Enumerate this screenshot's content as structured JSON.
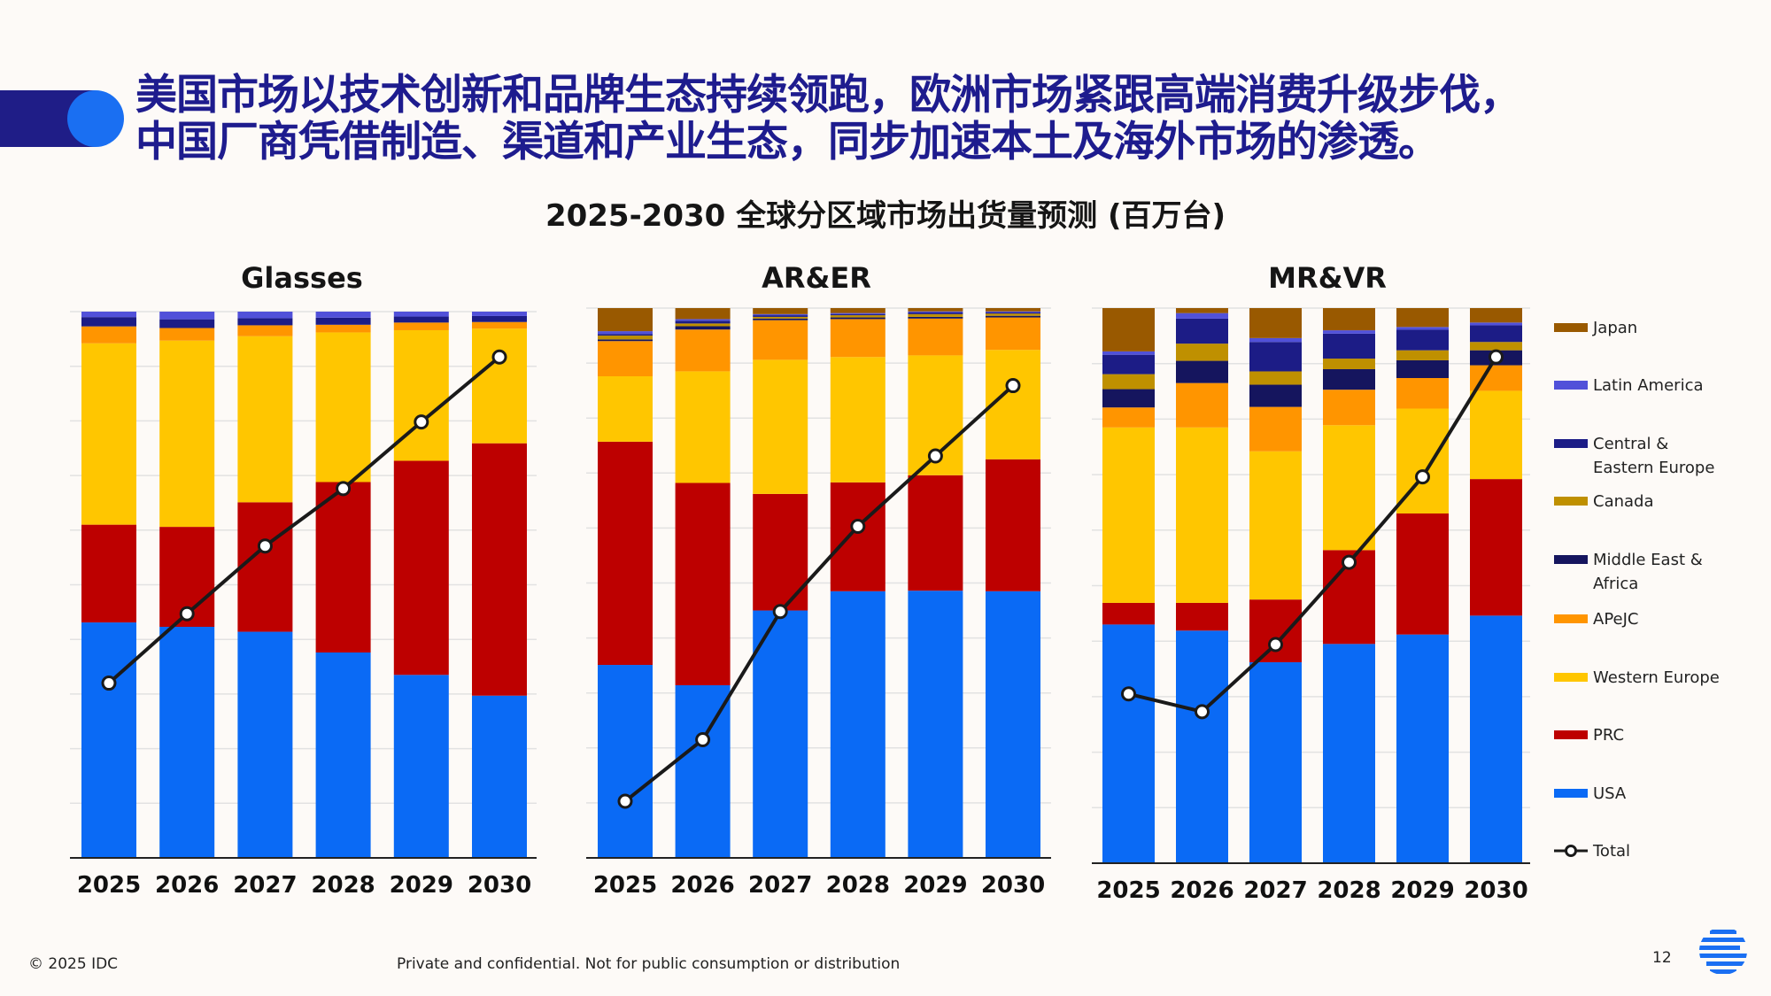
{
  "headline": {
    "line1": "美国市场以技术创新和品牌生态持续领跑，欧洲市场紧跟高端消费升级步伐，",
    "line2": "中国厂商凭借制造、渠道和产业生态，同步加速本土及海外市场的渗透。"
  },
  "subtitle": "2025-2030 全球分区域市场出货量预测 (百万台)",
  "colors": {
    "USA": "#0a6af5",
    "PRC": "#bd0000",
    "Western Europe": "#ffc600",
    "APeJC": "#ff9500",
    "Middle East & Africa": "#15155e",
    "Canada": "#bf9000",
    "Central & Eastern Europe": "#1c1c86",
    "Latin America": "#5151d9",
    "Japan": "#995900",
    "Total": "#1a1a1a",
    "accent": "#1e1c8e"
  },
  "legend": {
    "items": [
      {
        "label": "Japan",
        "key": "Japan"
      },
      {
        "label": "Latin America",
        "key": "Latin America"
      },
      {
        "label": "Central &\nEastern Europe",
        "key": "Central & Eastern Europe"
      },
      {
        "label": "Canada",
        "key": "Canada"
      },
      {
        "label": "Middle East &\nAfrica",
        "key": "Middle East & Africa"
      },
      {
        "label": "APeJC",
        "key": "APeJC"
      },
      {
        "label": "Western Europe",
        "key": "Western Europe"
      },
      {
        "label": "PRC",
        "key": "PRC"
      },
      {
        "label": "USA",
        "key": "USA"
      },
      {
        "label": "Total",
        "key": "Total"
      }
    ],
    "placement": "right"
  },
  "chart_data": [
    {
      "type": "bar",
      "stacked": "100%",
      "title": "Glasses",
      "categories": [
        "2025",
        "2026",
        "2027",
        "2028",
        "2029",
        "2030"
      ],
      "ylim": [
        0,
        100
      ],
      "grid": true,
      "y_ticks_labeled": false,
      "series": [
        {
          "name": "USA",
          "values": [
            43.1,
            42.3,
            41.4,
            37.6,
            33.5,
            29.7
          ]
        },
        {
          "name": "PRC",
          "values": [
            17.9,
            18.3,
            23.7,
            31.2,
            39.2,
            46.2
          ]
        },
        {
          "name": "Western Europe",
          "values": [
            33.2,
            34.1,
            30.4,
            27.4,
            23.9,
            21.0
          ]
        },
        {
          "name": "APeJC",
          "values": [
            3.1,
            2.3,
            2.0,
            1.4,
            1.4,
            1.2
          ]
        },
        {
          "name": "Middle East & Africa",
          "values": [
            0,
            0,
            0,
            0,
            0,
            0
          ]
        },
        {
          "name": "Canada",
          "values": [
            0,
            0,
            0,
            0,
            0,
            0
          ]
        },
        {
          "name": "Central & Eastern Europe",
          "values": [
            1.7,
            1.6,
            1.3,
            1.3,
            1.1,
            1.1
          ]
        },
        {
          "name": "Latin America",
          "values": [
            1.0,
            1.4,
            1.2,
            1.1,
            0.9,
            0.8
          ]
        },
        {
          "name": "Japan",
          "values": [
            0,
            0,
            0,
            0,
            0,
            0
          ]
        }
      ],
      "total_line": {
        "name": "Total",
        "relative_values": [
          32.0,
          44.7,
          57.1,
          67.6,
          79.8,
          91.7
        ]
      }
    },
    {
      "type": "bar",
      "stacked": "100%",
      "title": "AR&ER",
      "categories": [
        "2025",
        "2026",
        "2027",
        "2028",
        "2029",
        "2030"
      ],
      "ylim": [
        0,
        100
      ],
      "grid": true,
      "y_ticks_labeled": false,
      "series": [
        {
          "name": "USA",
          "values": [
            35.1,
            31.4,
            45.0,
            48.5,
            48.6,
            48.5
          ]
        },
        {
          "name": "PRC",
          "values": [
            40.6,
            36.8,
            21.2,
            19.8,
            21.0,
            24.0
          ]
        },
        {
          "name": "Western Europe",
          "values": [
            11.9,
            20.3,
            24.4,
            22.8,
            21.8,
            19.9
          ]
        },
        {
          "name": "APeJC",
          "values": [
            6.4,
            7.6,
            7.2,
            6.9,
            6.7,
            5.9
          ]
        },
        {
          "name": "Middle East & Africa",
          "values": [
            0.3,
            0.6,
            0.3,
            0.3,
            0.3,
            0.3
          ]
        },
        {
          "name": "Canada",
          "values": [
            0.7,
            0.5,
            0.3,
            0.4,
            0.5,
            0.4
          ]
        },
        {
          "name": "Central & Eastern Europe",
          "values": [
            0.3,
            0.5,
            0.3,
            0.2,
            0.3,
            0.2
          ]
        },
        {
          "name": "Latin America",
          "values": [
            0.5,
            0.3,
            0.2,
            0.2,
            0.2,
            0.2
          ]
        },
        {
          "name": "Japan",
          "values": [
            4.2,
            2.0,
            1.1,
            0.9,
            0.6,
            0.6
          ]
        }
      ],
      "total_line": {
        "name": "Total",
        "relative_values": [
          10.3,
          21.5,
          44.8,
          60.3,
          73.1,
          85.9
        ]
      }
    },
    {
      "type": "bar",
      "stacked": "100%",
      "title": "MR&VR",
      "categories": [
        "2025",
        "2026",
        "2027",
        "2028",
        "2029",
        "2030"
      ],
      "ylim": [
        0,
        100
      ],
      "grid": true,
      "y_ticks_labeled": false,
      "series": [
        {
          "name": "USA",
          "values": [
            43.0,
            41.9,
            36.2,
            39.5,
            41.2,
            44.6
          ]
        },
        {
          "name": "PRC",
          "values": [
            3.9,
            5.0,
            11.3,
            16.9,
            21.8,
            24.6
          ]
        },
        {
          "name": "Western Europe",
          "values": [
            31.6,
            31.6,
            26.7,
            22.5,
            18.9,
            15.9
          ]
        },
        {
          "name": "APeJC",
          "values": [
            3.6,
            8.0,
            8.0,
            6.4,
            5.5,
            4.6
          ]
        },
        {
          "name": "Middle East & Africa",
          "values": [
            3.3,
            4.0,
            4.0,
            3.7,
            3.2,
            2.7
          ]
        },
        {
          "name": "Canada",
          "values": [
            2.7,
            3.1,
            2.4,
            1.9,
            1.8,
            1.5
          ]
        },
        {
          "name": "Central & Eastern Europe",
          "values": [
            3.5,
            4.5,
            5.3,
            4.5,
            3.7,
            3.0
          ]
        },
        {
          "name": "Latin America",
          "values": [
            0.6,
            1.0,
            0.7,
            0.6,
            0.5,
            0.5
          ]
        },
        {
          "name": "Japan",
          "values": [
            7.8,
            0.9,
            5.4,
            4.0,
            3.4,
            2.6
          ]
        }
      ],
      "total_line": {
        "name": "Total",
        "relative_values": [
          30.5,
          27.3,
          39.4,
          54.2,
          69.6,
          91.2
        ]
      }
    }
  ],
  "footer": {
    "copyright": "© 2025 IDC",
    "confidential": "Private and confidential. Not for public consumption or distribution",
    "page_number": "12"
  }
}
